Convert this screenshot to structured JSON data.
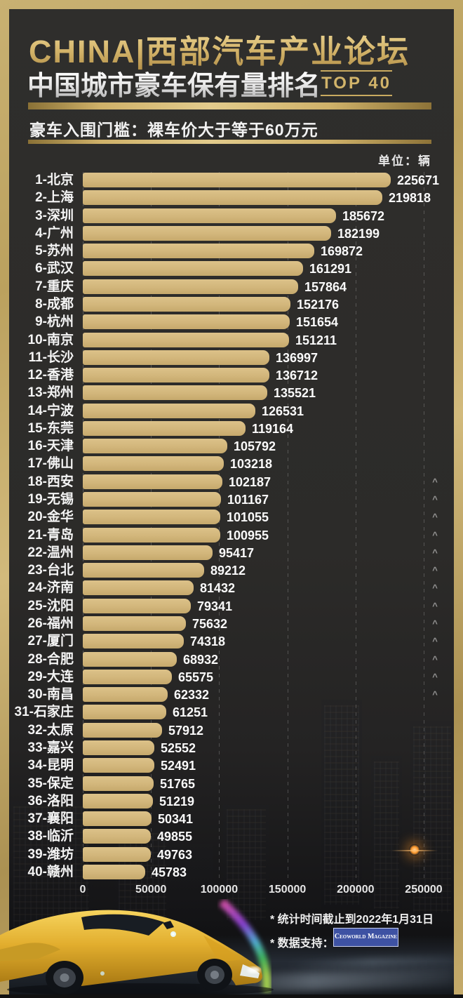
{
  "header": {
    "title_line1": "CHINA|西部汽车产业论坛",
    "title_line2": "中国城市豪车保有量排名",
    "top_badge": "TOP 40",
    "subtitle": "豪车入围门槛：裸车价大于等于60万元",
    "unit_label": "单位：辆"
  },
  "chart_data": {
    "type": "bar",
    "orientation": "horizontal",
    "title": "中国城市豪车保有量排名 TOP 40",
    "unit": "辆",
    "categories": [
      "1-北京",
      "2-上海",
      "3-深圳",
      "4-广州",
      "5-苏州",
      "6-武汉",
      "7-重庆",
      "8-成都",
      "9-杭州",
      "10-南京",
      "11-长沙",
      "12-香港",
      "13-郑州",
      "14-宁波",
      "15-东莞",
      "16-天津",
      "17-佛山",
      "18-西安",
      "19-无锡",
      "20-金华",
      "21-青岛",
      "22-温州",
      "23-台北",
      "24-济南",
      "25-沈阳",
      "26-福州",
      "27-厦门",
      "28-合肥",
      "29-大连",
      "30-南昌",
      "31-石家庄",
      "32-太原",
      "33-嘉兴",
      "34-昆明",
      "35-保定",
      "36-洛阳",
      "37-襄阳",
      "38-临沂",
      "39-潍坊",
      "40-赣州"
    ],
    "values": [
      225671,
      219818,
      185672,
      182199,
      169872,
      161291,
      157864,
      152176,
      151654,
      151211,
      136997,
      136712,
      135521,
      126531,
      119164,
      105792,
      103218,
      102187,
      101167,
      101055,
      100955,
      95417,
      89212,
      81432,
      79341,
      75632,
      74318,
      68932,
      65575,
      62332,
      61251,
      57912,
      52552,
      52491,
      51765,
      51219,
      50341,
      49855,
      49763,
      45783
    ],
    "xlim": [
      0,
      250000
    ],
    "x_ticks": [
      "0",
      "50000",
      "100000",
      "150000",
      "200000",
      "250000"
    ],
    "caret_rows": [
      18,
      19,
      20,
      21,
      22,
      23,
      24,
      25,
      26,
      27,
      28,
      29,
      30
    ],
    "bar_color": "#d5ba80",
    "grid": true,
    "legend": false
  },
  "footer": {
    "note1": "* 统计时间截止到2022年1月31日",
    "note2": "* 数据支持：",
    "logo_text": "Ceoworld Magazine"
  },
  "colors": {
    "frame_gold": "#c4aa6a",
    "background": "#2c2b29",
    "title_gold": "#d3b369",
    "bar_fill": "#d5ba80",
    "text_white": "#f2f2f2",
    "logo_blue": "#3e52a3"
  }
}
